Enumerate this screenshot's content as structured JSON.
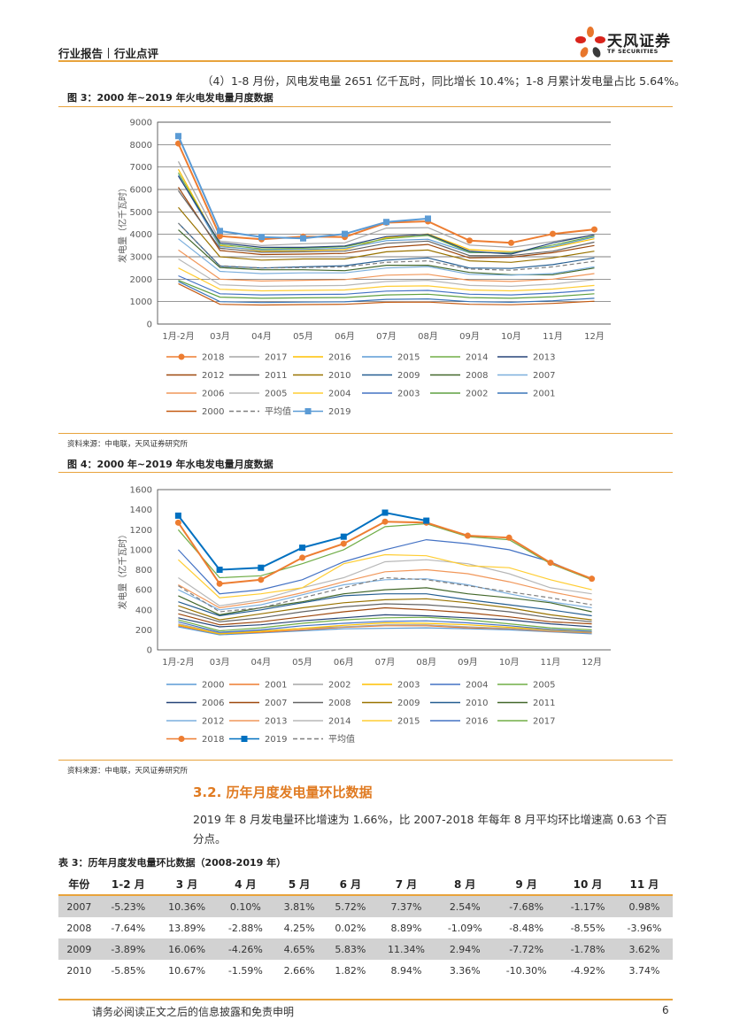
{
  "header": {
    "report_type": "行业报告",
    "report_sub": "行业点评",
    "logo_cn": "天风证券",
    "logo_en": "TF SECURITIES"
  },
  "intro_paragraph": "（4）1-8 月份，风电发电量 2651 亿千瓦时，同比增长 10.4%；1-8 月累计发电量占比 5.64%。",
  "figure3": {
    "title": "图 3：2000 年~2019 年火电发电量月度数据",
    "source": "资料来源：中电联，天风证券研究所"
  },
  "figure4": {
    "title": "图 4：2000 年~2019 年水电发电量月度数据",
    "source": "资料来源：中电联，天风证券研究所"
  },
  "section": {
    "title": "3.2. 历年月度发电量环比数据",
    "paragraph": "2019 年 8 月发电量环比增速为 1.66%，比 2007-2018 年每年 8 月平均环比增速高 0.63 个百分点。"
  },
  "table": {
    "title": "表 3：历年月度发电量环比数据（2008-2019 年）",
    "headers": [
      "年份",
      "1-2 月",
      "3 月",
      "4 月",
      "5 月",
      "6 月",
      "7 月",
      "8 月",
      "9 月",
      "10 月",
      "11 月"
    ],
    "rows": [
      [
        "2007",
        "-5.23%",
        "10.36%",
        "0.10%",
        "3.81%",
        "5.72%",
        "7.37%",
        "2.54%",
        "-7.68%",
        "-1.17%",
        "0.98%"
      ],
      [
        "2008",
        "-7.64%",
        "13.89%",
        "-2.88%",
        "4.25%",
        "0.02%",
        "8.89%",
        "-1.09%",
        "-8.48%",
        "-8.55%",
        "-3.96%"
      ],
      [
        "2009",
        "-3.89%",
        "16.06%",
        "-4.26%",
        "4.65%",
        "5.83%",
        "11.34%",
        "2.94%",
        "-7.72%",
        "-1.78%",
        "3.62%"
      ],
      [
        "2010",
        "-5.85%",
        "10.67%",
        "-1.59%",
        "2.66%",
        "1.82%",
        "8.94%",
        "3.36%",
        "-10.30%",
        "-4.92%",
        "3.74%"
      ]
    ]
  },
  "footer": {
    "disclaimer": "请务必阅读正文之后的信息披露和免责申明",
    "page": "6"
  },
  "chart_data": [
    {
      "type": "line",
      "ylabel": "发电量（亿千瓦时）",
      "ylim": [
        0,
        9000
      ],
      "yticks": [
        "0",
        "1000",
        "2000",
        "3000",
        "4000",
        "5000",
        "6000",
        "7000",
        "8000",
        "9000"
      ],
      "categories": [
        "1月-2月",
        "03月",
        "04月",
        "05月",
        "06月",
        "07月",
        "08月",
        "09月",
        "10月",
        "11月",
        "12月"
      ],
      "grid": true,
      "legend_position": "bottom",
      "series": [
        {
          "name": "2018",
          "color": "#ed7d31",
          "marker": "circle",
          "values": [
            8050,
            3920,
            3780,
            3900,
            3880,
            4520,
            4580,
            3720,
            3620,
            4020,
            4220
          ]
        },
        {
          "name": "2017",
          "color": "#a5a5a5",
          "values": [
            7250,
            3700,
            3500,
            3580,
            3620,
            4280,
            4300,
            3520,
            3420,
            3680,
            3980
          ]
        },
        {
          "name": "2016",
          "color": "#ffc000",
          "values": [
            6900,
            3500,
            3250,
            3280,
            3320,
            3850,
            4020,
            3320,
            3220,
            3420,
            3800
          ]
        },
        {
          "name": "2015",
          "color": "#5b9bd5",
          "values": [
            6650,
            3450,
            3300,
            3320,
            3380,
            3720,
            3780,
            3180,
            3180,
            3450,
            3880
          ]
        },
        {
          "name": "2014",
          "color": "#70ad47",
          "values": [
            6750,
            3550,
            3350,
            3380,
            3450,
            3800,
            3950,
            3200,
            3150,
            3520,
            3920
          ]
        },
        {
          "name": "2013",
          "color": "#264478",
          "values": [
            6600,
            3620,
            3420,
            3420,
            3480,
            3900,
            4000,
            3250,
            3120,
            3620,
            3980
          ]
        },
        {
          "name": "2012",
          "color": "#9e480e",
          "values": [
            6100,
            3280,
            3100,
            3120,
            3150,
            3420,
            3550,
            2950,
            2980,
            3180,
            3500
          ]
        },
        {
          "name": "2011",
          "color": "#636363",
          "values": [
            5950,
            3380,
            3200,
            3220,
            3250,
            3600,
            3700,
            3050,
            3050,
            3250,
            3650
          ]
        },
        {
          "name": "2010",
          "color": "#997300",
          "values": [
            5200,
            3000,
            2850,
            2900,
            2900,
            3220,
            3300,
            2820,
            2750,
            2950,
            3250
          ]
        },
        {
          "name": "2009",
          "color": "#255e91",
          "values": [
            4500,
            2580,
            2500,
            2550,
            2600,
            2850,
            2950,
            2500,
            2480,
            2650,
            2950
          ]
        },
        {
          "name": "2008",
          "color": "#43682b",
          "values": [
            4200,
            2520,
            2420,
            2420,
            2380,
            2620,
            2620,
            2300,
            2200,
            2200,
            2500
          ]
        },
        {
          "name": "2007",
          "color": "#7cafdd",
          "values": [
            3800,
            2350,
            2250,
            2280,
            2280,
            2500,
            2560,
            2220,
            2180,
            2250,
            2550
          ]
        },
        {
          "name": "2006",
          "color": "#f1975a",
          "values": [
            3300,
            2000,
            1920,
            1950,
            1980,
            2180,
            2220,
            1950,
            1900,
            2000,
            2250
          ]
        },
        {
          "name": "2005",
          "color": "#b7b7b7",
          "values": [
            2900,
            1750,
            1680,
            1700,
            1720,
            1900,
            1950,
            1720,
            1680,
            1780,
            1980
          ]
        },
        {
          "name": "2004",
          "color": "#ffcd33",
          "values": [
            2500,
            1550,
            1480,
            1500,
            1520,
            1680,
            1700,
            1520,
            1480,
            1560,
            1720
          ]
        },
        {
          "name": "2003",
          "color": "#4472c4",
          "values": [
            2150,
            1350,
            1300,
            1320,
            1330,
            1470,
            1500,
            1330,
            1300,
            1380,
            1520
          ]
        },
        {
          "name": "2002",
          "color": "#5fa040",
          "values": [
            1950,
            1200,
            1150,
            1170,
            1180,
            1300,
            1330,
            1180,
            1150,
            1220,
            1350
          ]
        },
        {
          "name": "2001",
          "color": "#3a76b8",
          "values": [
            1900,
            1000,
            960,
            980,
            990,
            1100,
            1120,
            1000,
            970,
            1040,
            1150
          ]
        },
        {
          "name": "2000",
          "color": "#c55a11",
          "values": [
            1800,
            880,
            850,
            870,
            880,
            970,
            980,
            880,
            860,
            920,
            1020
          ]
        },
        {
          "name": "平均值",
          "color": "#7f7f7f",
          "dashed": true,
          "values": [
            4500,
            2600,
            2500,
            2520,
            2550,
            2750,
            2820,
            2450,
            2400,
            2550,
            2800
          ]
        },
        {
          "name": "2019",
          "color": "#5b9bd5",
          "marker": "square",
          "values": [
            8380,
            4150,
            3880,
            3820,
            4020,
            4550,
            4700,
            null,
            null,
            null,
            null
          ]
        }
      ]
    },
    {
      "type": "line",
      "ylabel": "发电量（亿千瓦时）",
      "ylim": [
        0,
        1600
      ],
      "yticks": [
        "0",
        "200",
        "400",
        "600",
        "800",
        "1000",
        "1200",
        "1400",
        "1600"
      ],
      "categories": [
        "1月-2月",
        "03月",
        "04月",
        "05月",
        "06月",
        "07月",
        "08月",
        "09月",
        "10月",
        "11月",
        "12月"
      ],
      "grid": false,
      "legend_position": "bottom",
      "series": [
        {
          "name": "2000",
          "color": "#5b9bd5",
          "values": [
            230,
            150,
            170,
            190,
            210,
            215,
            220,
            210,
            200,
            180,
            160
          ]
        },
        {
          "name": "2001",
          "color": "#ed7d31",
          "values": [
            240,
            160,
            175,
            200,
            225,
            240,
            240,
            220,
            210,
            185,
            170
          ]
        },
        {
          "name": "2002",
          "color": "#a5a5a5",
          "values": [
            260,
            170,
            190,
            215,
            230,
            250,
            250,
            230,
            215,
            190,
            175
          ]
        },
        {
          "name": "2003",
          "color": "#ffc000",
          "values": [
            250,
            160,
            185,
            215,
            245,
            270,
            265,
            250,
            225,
            200,
            180
          ]
        },
        {
          "name": "2004",
          "color": "#4472c4",
          "values": [
            280,
            175,
            200,
            240,
            265,
            285,
            290,
            270,
            240,
            205,
            185
          ]
        },
        {
          "name": "2005",
          "color": "#70ad47",
          "values": [
            300,
            190,
            220,
            265,
            300,
            320,
            325,
            300,
            260,
            220,
            200
          ]
        },
        {
          "name": "2006",
          "color": "#264478",
          "values": [
            320,
            230,
            250,
            290,
            320,
            350,
            340,
            320,
            300,
            260,
            230
          ]
        },
        {
          "name": "2007",
          "color": "#9e480e",
          "values": [
            360,
            250,
            280,
            330,
            380,
            420,
            400,
            370,
            330,
            280,
            260
          ]
        },
        {
          "name": "2008",
          "color": "#636363",
          "values": [
            400,
            280,
            320,
            380,
            430,
            460,
            450,
            420,
            380,
            320,
            280
          ]
        },
        {
          "name": "2009",
          "color": "#997300",
          "values": [
            440,
            300,
            360,
            420,
            470,
            500,
            510,
            470,
            420,
            350,
            300
          ]
        },
        {
          "name": "2010",
          "color": "#255e91",
          "values": [
            480,
            340,
            400,
            470,
            540,
            560,
            560,
            500,
            450,
            400,
            340
          ]
        },
        {
          "name": "2011",
          "color": "#43682b",
          "values": [
            540,
            350,
            420,
            480,
            560,
            600,
            620,
            560,
            520,
            470,
            380
          ]
        },
        {
          "name": "2012",
          "color": "#7cafdd",
          "values": [
            600,
            400,
            450,
            550,
            650,
            700,
            710,
            650,
            560,
            480,
            420
          ]
        },
        {
          "name": "2013",
          "color": "#f1975a",
          "values": [
            650,
            420,
            480,
            570,
            680,
            780,
            800,
            760,
            680,
            580,
            500
          ]
        },
        {
          "name": "2014",
          "color": "#b7b7b7",
          "values": [
            720,
            440,
            500,
            620,
            720,
            880,
            900,
            860,
            760,
            620,
            560
          ]
        },
        {
          "name": "2015",
          "color": "#ffcd33",
          "values": [
            900,
            520,
            560,
            620,
            860,
            950,
            940,
            840,
            820,
            700,
            600
          ]
        },
        {
          "name": "2016",
          "color": "#4472c4",
          "values": [
            1000,
            560,
            600,
            700,
            880,
            1000,
            1100,
            1060,
            1000,
            880,
            700
          ]
        },
        {
          "name": "2017",
          "color": "#70ad47",
          "values": [
            1200,
            720,
            740,
            860,
            1000,
            1230,
            1260,
            1130,
            1100,
            860,
            700
          ]
        },
        {
          "name": "2018",
          "color": "#ed7d31",
          "marker": "circle",
          "values": [
            1270,
            660,
            700,
            920,
            1060,
            1280,
            1270,
            1140,
            1120,
            870,
            710
          ]
        },
        {
          "name": "2019",
          "color": "#0070c0",
          "marker": "square",
          "values": [
            1340,
            800,
            820,
            1020,
            1130,
            1370,
            1290,
            null,
            null,
            null,
            null
          ]
        },
        {
          "name": "平均值",
          "color": "#7f7f7f",
          "dashed": true,
          "values": [
            640,
            380,
            420,
            520,
            620,
            720,
            700,
            640,
            580,
            520,
            450
          ]
        }
      ]
    }
  ]
}
